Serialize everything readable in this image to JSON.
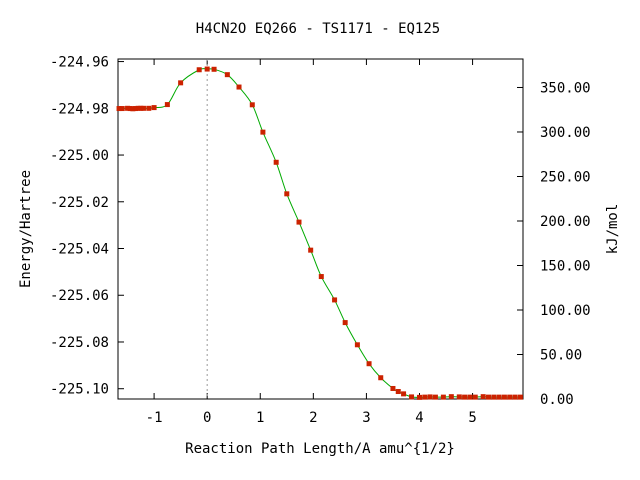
{
  "chart_data": {
    "type": "line",
    "title": "H4CN2O   EQ266 - TS1171 - EQ125",
    "xlabel": "Reaction Path Length/A amu^{1/2}",
    "ylabel": "Energy/Hartree",
    "y2label": "kJ/mol",
    "xlim": [
      -1.68,
      5.95
    ],
    "ylim": [
      -225.1044,
      -224.9589
    ],
    "y2lim": [
      0.0,
      382.0
    ],
    "x_ticks": [
      {
        "value": -1,
        "label": "-1"
      },
      {
        "value": 0,
        "label": "0"
      },
      {
        "value": 1,
        "label": "1"
      },
      {
        "value": 2,
        "label": "2"
      },
      {
        "value": 3,
        "label": "3"
      },
      {
        "value": 4,
        "label": "4"
      },
      {
        "value": 5,
        "label": "5"
      }
    ],
    "y_ticks": [
      {
        "value": -224.96,
        "label": "-224.96"
      },
      {
        "value": -224.98,
        "label": "-224.98"
      },
      {
        "value": -225.0,
        "label": "-225.00"
      },
      {
        "value": -225.02,
        "label": "-225.02"
      },
      {
        "value": -225.04,
        "label": "-225.04"
      },
      {
        "value": -225.06,
        "label": "-225.06"
      },
      {
        "value": -225.08,
        "label": "-225.08"
      },
      {
        "value": -225.1,
        "label": "-225.10"
      }
    ],
    "y2_ticks": [
      {
        "value": 0,
        "label": "0.00"
      },
      {
        "value": 50,
        "label": "50.00"
      },
      {
        "value": 100,
        "label": "100.00"
      },
      {
        "value": 150,
        "label": "150.00"
      },
      {
        "value": 200,
        "label": "200.00"
      },
      {
        "value": 250,
        "label": "250.00"
      },
      {
        "value": 300,
        "label": "300.00"
      },
      {
        "value": 350,
        "label": "350.00"
      }
    ],
    "ts_marker_x": 0.0,
    "grid": false,
    "legend": "none",
    "colors": {
      "curve": "#00aa00",
      "points": "#cc2200",
      "ts_line": "#999999",
      "axis": "#000000"
    },
    "series": [
      {
        "x": [
          -1.66,
          -1.6,
          -1.5,
          -1.45,
          -1.4,
          -1.35,
          -1.3,
          -1.25,
          -1.2,
          -1.1,
          -1.0,
          -0.75,
          -0.5,
          -0.15,
          0.0,
          0.13,
          0.38,
          0.6,
          0.85,
          1.05,
          1.3,
          1.5,
          1.73,
          1.95,
          2.15,
          2.4,
          2.6,
          2.83,
          3.05,
          3.27,
          3.5,
          3.6,
          3.7,
          3.85,
          4.0,
          4.1,
          4.2,
          4.3,
          4.45,
          4.6,
          4.75,
          4.85,
          4.95,
          5.05,
          5.2,
          5.3,
          5.4,
          5.5,
          5.6,
          5.7,
          5.8,
          5.9
        ],
        "y": [
          -224.9801,
          -224.9801,
          -224.98,
          -224.9801,
          -224.9802,
          -224.9801,
          -224.98,
          -224.98,
          -224.98,
          -224.98,
          -224.9797,
          -224.9784,
          -224.9691,
          -224.9635,
          -224.9632,
          -224.9633,
          -224.9656,
          -224.9709,
          -224.9785,
          -224.9902,
          -225.0031,
          -225.0166,
          -225.0287,
          -225.0407,
          -225.052,
          -225.062,
          -225.0717,
          -225.0812,
          -225.0893,
          -225.0953,
          -225.0999,
          -225.1012,
          -225.1022,
          -225.1035,
          -225.1037,
          -225.1036,
          -225.1035,
          -225.1036,
          -225.1036,
          -225.1034,
          -225.1035,
          -225.1036,
          -225.1036,
          -225.1036,
          -225.1034,
          -225.1036,
          -225.1036,
          -225.1036,
          -225.1036,
          -225.1036,
          -225.1036,
          -225.1036
        ]
      }
    ]
  }
}
